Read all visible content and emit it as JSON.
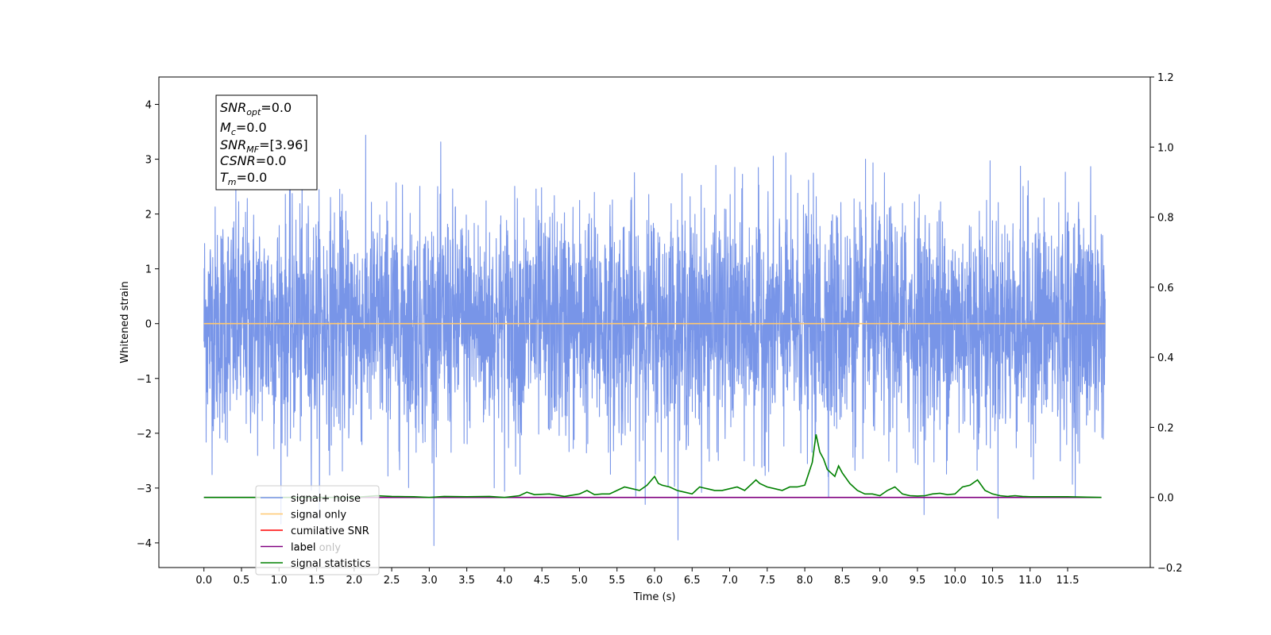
{
  "chart_data": {
    "type": "line",
    "xlabel": "Time (s)",
    "ylabel": "Whitened strain",
    "xlim": [
      -0.6,
      12.6
    ],
    "ylim": [
      -4.45,
      4.5
    ],
    "y2lim": [
      -0.2,
      1.2
    ],
    "x_ticks": [
      "0.0",
      "0.5",
      "1.0",
      "1.5",
      "2.0",
      "2.5",
      "3.0",
      "3.5",
      "4.0",
      "4.5",
      "5.0",
      "5.5",
      "6.0",
      "6.5",
      "7.0",
      "7.5",
      "8.0",
      "8.5",
      "9.0",
      "9.5",
      "10.0",
      "10.5",
      "11.0",
      "11.5"
    ],
    "y_ticks": [
      "−4",
      "−3",
      "−2",
      "−1",
      "0",
      "1",
      "2",
      "3",
      "4"
    ],
    "y2_ticks": [
      "−0.2",
      "0.0",
      "0.2",
      "0.4",
      "0.6",
      "0.8",
      "1.0",
      "1.2"
    ],
    "annotation": {
      "snr_opt": {
        "base": "SNR",
        "sub": "opt",
        "value": "=0.0"
      },
      "mc": {
        "base": "M",
        "sub": "c",
        "value": "=0.0"
      },
      "snr_mf": {
        "base": "SNR",
        "sub": "MF",
        "value": "=[3.96]"
      },
      "csnr": {
        "base": "CSNR",
        "sub": "",
        "value": "=0.0"
      },
      "tm": {
        "base": "T",
        "sub": "m",
        "value": "=0.0"
      }
    },
    "legend": {
      "placement": "lower-left",
      "entries": [
        {
          "label": "signal+ noise",
          "color": "#7895e8"
        },
        {
          "label": "signal only",
          "color": "#ffc870"
        },
        {
          "label": "cumilative SNR",
          "color": "#ff0000"
        },
        {
          "label": "label",
          "color": "#800080"
        },
        {
          "label": "signal statistics",
          "color": "#008000"
        }
      ],
      "obscured_text": "label only"
    },
    "series": [
      {
        "name": "signal+ noise",
        "axis": "left",
        "color": "#7895e8",
        "x_range": [
          0.0,
          12.0
        ],
        "value_range": [
          -4.05,
          3.78
        ],
        "samples": 4096
      },
      {
        "name": "signal only",
        "axis": "left",
        "color": "#ffc870",
        "x": [
          0.0,
          12.0
        ],
        "values": [
          0.0,
          0.0
        ]
      },
      {
        "name": "label",
        "axis": "right",
        "color": "#800080",
        "x": [
          0.0,
          11.95
        ],
        "values": [
          0.0,
          0.0
        ]
      },
      {
        "name": "signal statistics",
        "axis": "right",
        "color": "#008000",
        "x": [
          0.0,
          0.5,
          1.0,
          1.5,
          2.0,
          2.3,
          2.5,
          2.8,
          3.0,
          3.2,
          3.5,
          3.8,
          4.0,
          4.2,
          4.3,
          4.4,
          4.6,
          4.8,
          5.0,
          5.1,
          5.2,
          5.3,
          5.4,
          5.5,
          5.6,
          5.7,
          5.8,
          5.9,
          6.0,
          6.05,
          6.1,
          6.2,
          6.3,
          6.4,
          6.5,
          6.55,
          6.6,
          6.7,
          6.8,
          6.9,
          7.0,
          7.1,
          7.2,
          7.3,
          7.35,
          7.4,
          7.5,
          7.6,
          7.7,
          7.8,
          7.9,
          8.0,
          8.1,
          8.15,
          8.2,
          8.25,
          8.3,
          8.4,
          8.45,
          8.5,
          8.6,
          8.7,
          8.8,
          8.9,
          9.0,
          9.1,
          9.2,
          9.3,
          9.4,
          9.5,
          9.6,
          9.7,
          9.8,
          9.9,
          10.0,
          10.1,
          10.2,
          10.3,
          10.4,
          10.5,
          10.6,
          10.7,
          10.8,
          10.9,
          11.0,
          11.2,
          11.5,
          11.95
        ],
        "values": [
          0.0,
          0.0,
          0.0,
          0.0,
          0.0,
          0.005,
          0.003,
          0.002,
          0.0,
          0.003,
          0.002,
          0.003,
          0.0,
          0.005,
          0.015,
          0.008,
          0.01,
          0.003,
          0.01,
          0.02,
          0.008,
          0.01,
          0.01,
          0.02,
          0.03,
          0.025,
          0.02,
          0.035,
          0.06,
          0.04,
          0.035,
          0.03,
          0.02,
          0.015,
          0.01,
          0.02,
          0.03,
          0.025,
          0.02,
          0.02,
          0.025,
          0.03,
          0.02,
          0.04,
          0.05,
          0.04,
          0.03,
          0.025,
          0.02,
          0.03,
          0.03,
          0.035,
          0.1,
          0.18,
          0.13,
          0.11,
          0.08,
          0.06,
          0.09,
          0.07,
          0.04,
          0.02,
          0.01,
          0.01,
          0.005,
          0.02,
          0.03,
          0.01,
          0.005,
          0.004,
          0.005,
          0.01,
          0.012,
          0.008,
          0.01,
          0.03,
          0.035,
          0.05,
          0.02,
          0.01,
          0.005,
          0.003,
          0.005,
          0.003,
          0.002,
          0.002,
          0.002,
          0.0
        ]
      }
    ]
  }
}
